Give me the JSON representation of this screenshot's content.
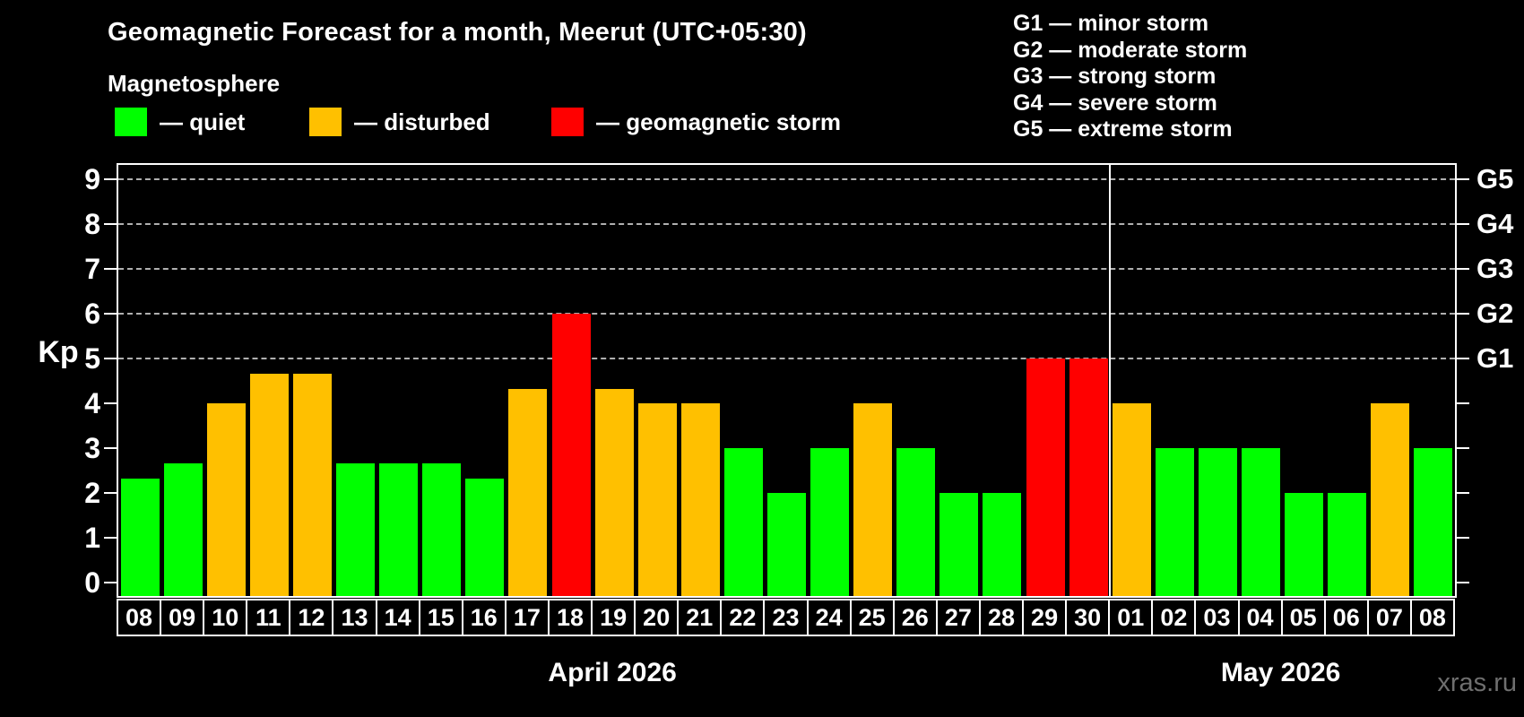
{
  "title": "Geomagnetic Forecast for a month, Meerut (UTC+05:30)",
  "subtitle": "Magnetosphere",
  "legend": {
    "quiet_label": "— quiet",
    "disturbed_label": "— disturbed",
    "storm_label": "— geomagnetic storm"
  },
  "g_scale_legend": {
    "lines": [
      "G1 — minor storm",
      "G2 — moderate storm",
      "G3 — strong storm",
      "G4 — severe storm",
      "G5 — extreme storm"
    ]
  },
  "watermark": "xras.ru",
  "colors": {
    "quiet": "#00ff00",
    "disturbed": "#ffc000",
    "storm": "#ff0000",
    "background": "#000000",
    "axis": "#ffffff",
    "gridline": "#b0b0b0",
    "watermark": "#6f6f6f"
  },
  "chart_data": {
    "type": "bar",
    "ylabel": "Kp",
    "ylim": [
      0,
      9.4
    ],
    "y_ticks": [
      0,
      1,
      2,
      3,
      4,
      5,
      6,
      7,
      8,
      9
    ],
    "gridlines_at": [
      5,
      6,
      7,
      8,
      9
    ],
    "right_axis_labels": [
      {
        "kp": 5,
        "label": "G1"
      },
      {
        "kp": 6,
        "label": "G2"
      },
      {
        "kp": 7,
        "label": "G3"
      },
      {
        "kp": 8,
        "label": "G4"
      },
      {
        "kp": 9,
        "label": "G5"
      }
    ],
    "legend_states": {
      "quiet": "green",
      "disturbed": "orange",
      "storm": "red"
    },
    "months": [
      {
        "label": "April 2026",
        "start_index": 0,
        "count": 23
      },
      {
        "label": "May 2026",
        "start_index": 23,
        "count": 8
      }
    ],
    "days": [
      {
        "day": "08",
        "kp": 2.33,
        "state": "quiet"
      },
      {
        "day": "09",
        "kp": 2.67,
        "state": "quiet"
      },
      {
        "day": "10",
        "kp": 4.0,
        "state": "disturbed"
      },
      {
        "day": "11",
        "kp": 4.67,
        "state": "disturbed"
      },
      {
        "day": "12",
        "kp": 4.67,
        "state": "disturbed"
      },
      {
        "day": "13",
        "kp": 2.67,
        "state": "quiet"
      },
      {
        "day": "14",
        "kp": 2.67,
        "state": "quiet"
      },
      {
        "day": "15",
        "kp": 2.67,
        "state": "quiet"
      },
      {
        "day": "16",
        "kp": 2.33,
        "state": "quiet"
      },
      {
        "day": "17",
        "kp": 4.33,
        "state": "disturbed"
      },
      {
        "day": "18",
        "kp": 6.0,
        "state": "storm"
      },
      {
        "day": "19",
        "kp": 4.33,
        "state": "disturbed"
      },
      {
        "day": "20",
        "kp": 4.0,
        "state": "disturbed"
      },
      {
        "day": "21",
        "kp": 4.0,
        "state": "disturbed"
      },
      {
        "day": "22",
        "kp": 3.0,
        "state": "quiet"
      },
      {
        "day": "23",
        "kp": 2.0,
        "state": "quiet"
      },
      {
        "day": "24",
        "kp": 3.0,
        "state": "quiet"
      },
      {
        "day": "25",
        "kp": 4.0,
        "state": "disturbed"
      },
      {
        "day": "26",
        "kp": 3.0,
        "state": "quiet"
      },
      {
        "day": "27",
        "kp": 2.0,
        "state": "quiet"
      },
      {
        "day": "28",
        "kp": 2.0,
        "state": "quiet"
      },
      {
        "day": "29",
        "kp": 5.0,
        "state": "storm"
      },
      {
        "day": "30",
        "kp": 5.0,
        "state": "storm"
      },
      {
        "day": "01",
        "kp": 4.0,
        "state": "disturbed"
      },
      {
        "day": "02",
        "kp": 3.0,
        "state": "quiet"
      },
      {
        "day": "03",
        "kp": 3.0,
        "state": "quiet"
      },
      {
        "day": "04",
        "kp": 3.0,
        "state": "quiet"
      },
      {
        "day": "05",
        "kp": 2.0,
        "state": "quiet"
      },
      {
        "day": "06",
        "kp": 2.0,
        "state": "quiet"
      },
      {
        "day": "07",
        "kp": 4.0,
        "state": "disturbed"
      },
      {
        "day": "08",
        "kp": 3.0,
        "state": "quiet"
      }
    ]
  }
}
